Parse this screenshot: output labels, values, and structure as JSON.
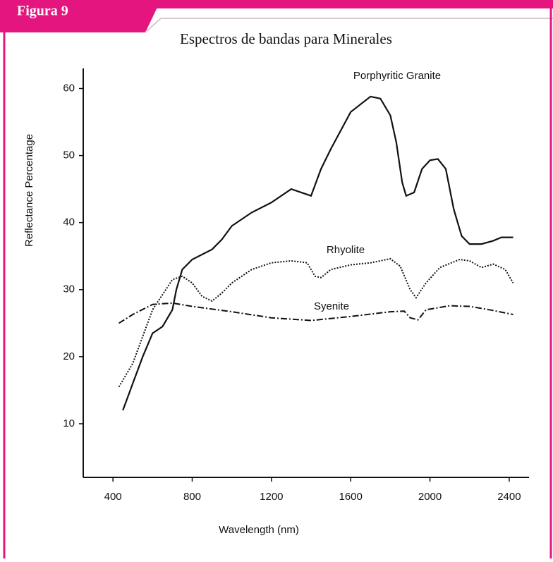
{
  "header": {
    "tag": "Figura 9",
    "title": "Espectros de bandas para Minerales"
  },
  "chart_data": {
    "type": "line",
    "xlabel": "Wavelength (nm)",
    "ylabel": "Reflectance Percentage",
    "xlim": [
      250,
      2500
    ],
    "xticks": [
      400,
      800,
      1200,
      1600,
      2000,
      2400
    ],
    "ylim": [
      2,
      63
    ],
    "yticks": [
      10,
      20,
      30,
      40,
      50,
      60
    ],
    "series": [
      {
        "name": "Porphyritic Granite",
        "color": "#111111",
        "dash": "solid",
        "x": [
          450,
          500,
          550,
          600,
          650,
          700,
          720,
          750,
          800,
          900,
          950,
          1000,
          1100,
          1200,
          1300,
          1350,
          1400,
          1450,
          1500,
          1600,
          1700,
          1750,
          1800,
          1830,
          1860,
          1880,
          1920,
          1960,
          2000,
          2040,
          2080,
          2120,
          2160,
          2200,
          2260,
          2320,
          2360,
          2420
        ],
        "values": [
          12,
          16,
          20,
          23.5,
          24.5,
          27,
          30,
          33,
          34.5,
          36,
          37.5,
          39.5,
          41.5,
          43,
          45,
          44.5,
          44,
          48,
          51,
          56.5,
          58.8,
          58.5,
          56,
          52,
          46,
          44,
          44.5,
          48,
          49.3,
          49.5,
          48,
          42,
          38,
          36.8,
          36.8,
          37.3,
          37.8,
          37.8
        ]
      },
      {
        "name": "Rhyolite",
        "color": "#111111",
        "dash": "dotted",
        "x": [
          430,
          500,
          600,
          700,
          750,
          800,
          850,
          900,
          950,
          1000,
          1100,
          1200,
          1300,
          1380,
          1420,
          1450,
          1500,
          1600,
          1700,
          1800,
          1850,
          1900,
          1930,
          1980,
          2050,
          2150,
          2200,
          2260,
          2320,
          2380,
          2420
        ],
        "values": [
          15.5,
          19,
          27,
          31.5,
          32,
          31,
          29,
          28.3,
          29.5,
          31,
          33,
          34,
          34.3,
          34,
          32,
          31.8,
          33,
          33.7,
          34,
          34.6,
          33.5,
          30,
          28.8,
          31,
          33.3,
          34.5,
          34.3,
          33.3,
          33.8,
          33,
          31
        ]
      },
      {
        "name": "Syenite",
        "color": "#111111",
        "dash": "dashdot",
        "x": [
          430,
          500,
          600,
          700,
          800,
          1000,
          1200,
          1400,
          1600,
          1800,
          1870,
          1900,
          1940,
          1980,
          2100,
          2200,
          2300,
          2420
        ],
        "values": [
          25,
          26.3,
          27.8,
          28,
          27.5,
          26.7,
          25.8,
          25.4,
          26,
          26.7,
          26.8,
          25.8,
          25.5,
          27,
          27.6,
          27.5,
          27,
          26.3
        ]
      }
    ]
  }
}
